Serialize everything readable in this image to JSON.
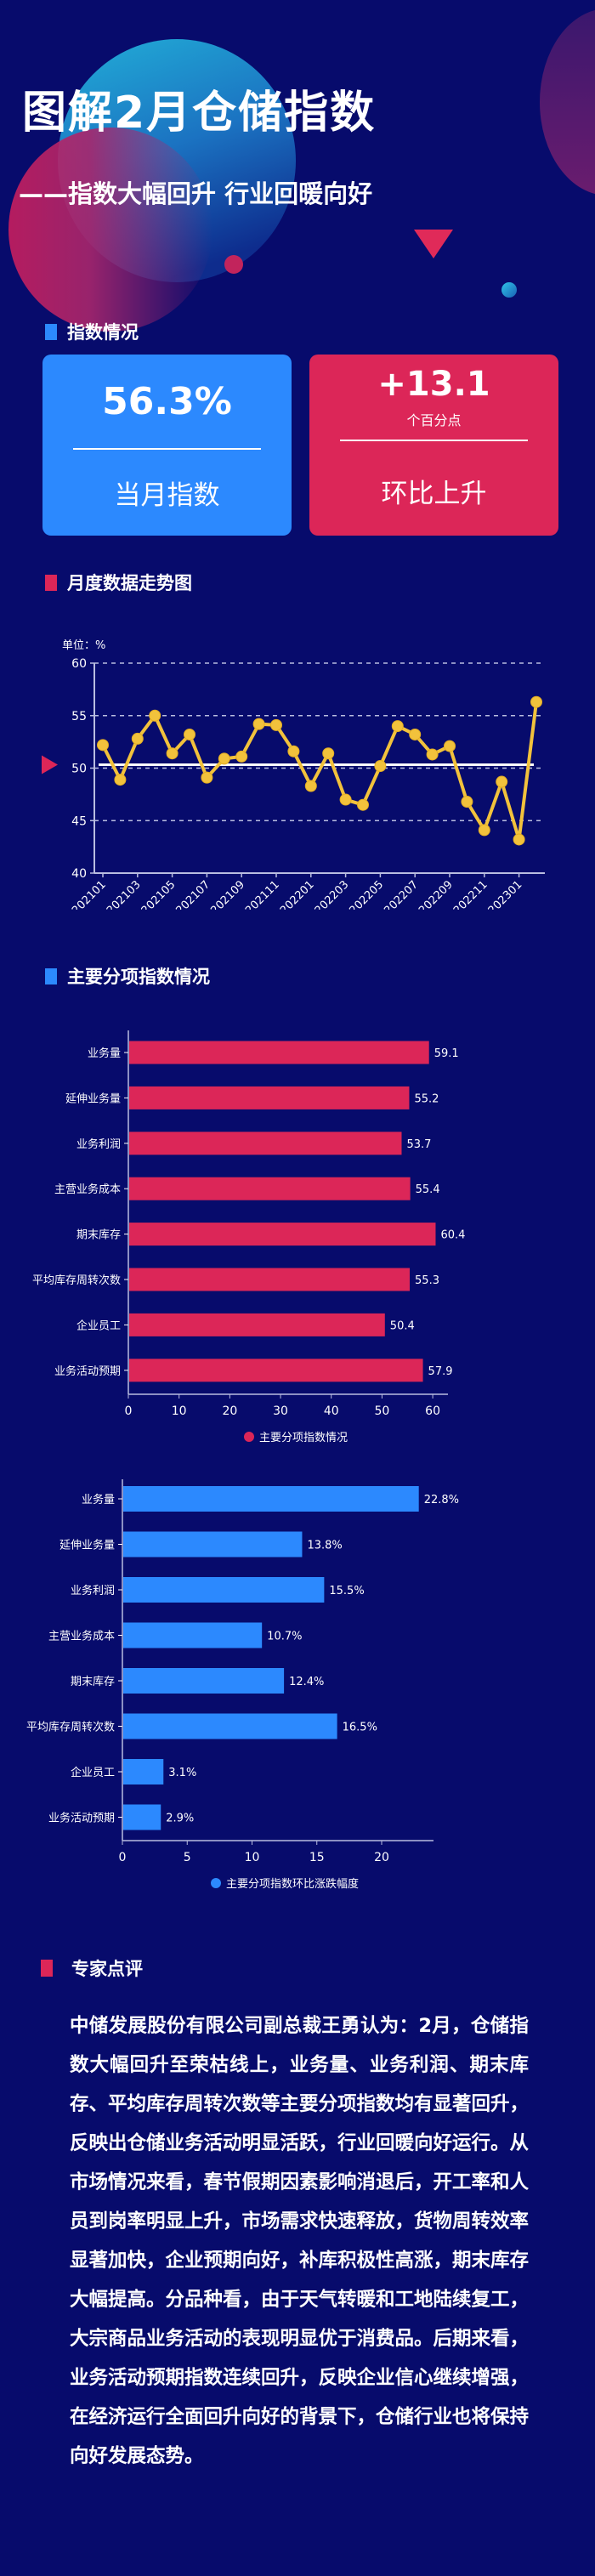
{
  "header": {
    "title": "图解2月仓储指数",
    "subtitle": "——指数大幅回升 行业回暖向好"
  },
  "sections": {
    "index_overview": "指数情况",
    "monthly_trend": "月度数据走势图",
    "sub_indices": "主要分项指数情况",
    "expert_comment": "专家点评"
  },
  "cards": {
    "current": {
      "value": "56.3%",
      "label": "当月指数",
      "color": "#2c89fe"
    },
    "change": {
      "value": "+13.1",
      "unit": "个百分点",
      "label": "环比上升",
      "color": "#dc2658"
    }
  },
  "colors": {
    "background": "#070b6c",
    "accent_blue": "#2c89fe",
    "accent_red": "#dc2658",
    "line_yellow": "#f2c23c"
  },
  "chart_data": [
    {
      "type": "line",
      "title": "月度数据走势图",
      "ylabel": "单位：%",
      "ylim": [
        40,
        60
      ],
      "yticks": [
        40,
        45,
        50,
        55,
        60
      ],
      "grid": "dashed horizontal",
      "reference_line": 50,
      "x": [
        "202101",
        "202102",
        "202103",
        "202104",
        "202105",
        "202106",
        "202107",
        "202108",
        "202109",
        "202110",
        "202111",
        "202112",
        "202201",
        "202202",
        "202203",
        "202204",
        "202205",
        "202206",
        "202207",
        "202208",
        "202209",
        "202210",
        "202211",
        "202212",
        "202301",
        "202302"
      ],
      "xtick_labels": [
        "202101",
        "202103",
        "202105",
        "202107",
        "202109",
        "202111",
        "202201",
        "202203",
        "202205",
        "202207",
        "202209",
        "202211",
        "202301"
      ],
      "values": [
        52.2,
        48.9,
        52.8,
        55.0,
        51.4,
        53.2,
        49.1,
        50.9,
        51.1,
        54.2,
        54.1,
        51.6,
        48.3,
        51.4,
        47.0,
        46.5,
        50.2,
        54.0,
        53.2,
        51.3,
        52.1,
        46.8,
        44.1,
        48.7,
        43.2,
        56.3
      ]
    },
    {
      "type": "bar",
      "orientation": "horizontal",
      "categories": [
        "业务量",
        "延伸业务量",
        "业务利润",
        "主营业务成本",
        "期末库存",
        "平均库存周转次数",
        "企业员工",
        "业务活动预期"
      ],
      "values": [
        59.1,
        55.2,
        53.7,
        55.4,
        60.4,
        55.3,
        50.4,
        57.9
      ],
      "value_labels": [
        "59.1",
        "55.2",
        "53.7",
        "55.4",
        "60.4",
        "55.3",
        "50.4",
        "57.9"
      ],
      "xlim": [
        0,
        63
      ],
      "xticks": [
        0,
        10,
        20,
        30,
        40,
        50,
        60
      ],
      "legend": "主要分项指数情况",
      "color": "#dc2658"
    },
    {
      "type": "bar",
      "orientation": "horizontal",
      "categories": [
        "业务量",
        "延伸业务量",
        "业务利润",
        "主营业务成本",
        "期末库存",
        "平均库存周转次数",
        "企业员工",
        "业务活动预期"
      ],
      "values": [
        22.8,
        13.8,
        15.5,
        10.7,
        12.4,
        16.5,
        3.1,
        2.9
      ],
      "value_labels": [
        "22.8%",
        "13.8%",
        "15.5%",
        "10.7%",
        "12.4%",
        "16.5%",
        "3.1%",
        "2.9%"
      ],
      "xlim": [
        0,
        24
      ],
      "xticks": [
        0,
        5,
        10,
        15,
        20
      ],
      "legend": "主要分项指数环比涨跌幅度",
      "color": "#2c89fe"
    }
  ],
  "expert": {
    "text": "中储发展股份有限公司副总裁王勇认为：2月，仓储指数大幅回升至荣枯线上，业务量、业务利润、期末库存、平均库存周转次数等主要分项指数均有显著回升，反映出仓储业务活动明显活跃，行业回暖向好运行。从市场情况来看，春节假期因素影响消退后，开工率和人员到岗率明显上升，市场需求快速释放，货物周转效率显著加快，企业预期向好，补库积极性高涨，期末库存大幅提高。分品种看，由于天气转暖和工地陆续复工，大宗商品业务活动的表现明显优于消费品。后期来看，业务活动预期指数连续回升，反映企业信心继续增强，在经济运行全面回升向好的背景下，仓储行业也将保持向好发展态势。"
  }
}
